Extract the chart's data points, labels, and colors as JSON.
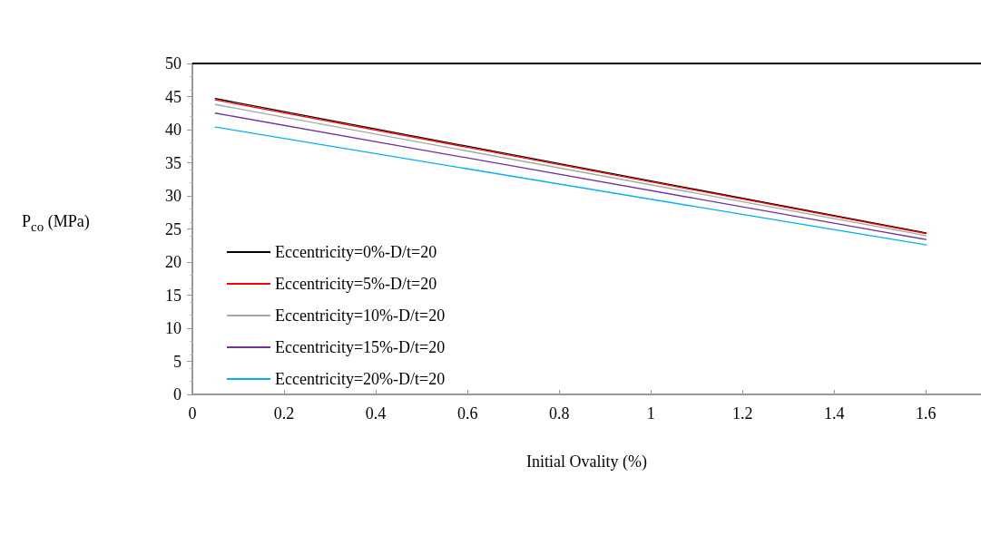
{
  "chart_data": {
    "type": "line",
    "xlabel": "Initial Ovality (%)",
    "ylabel": "P$_{co}$ (MPa)",
    "x": [
      0.05,
      1.6
    ],
    "series": [
      {
        "name": "Eccentricity=0%-D/t=20",
        "color": "#000000",
        "values": [
          44.7,
          24.4
        ]
      },
      {
        "name": "Eccentricity=5%-D/t=20",
        "color": "#ff0000",
        "values": [
          44.5,
          24.3
        ]
      },
      {
        "name": "Eccentricity=10%-D/t=20",
        "color": "#a6a6a6",
        "values": [
          43.8,
          24.0
        ]
      },
      {
        "name": "Eccentricity=15%-D/t=20",
        "color": "#7030a0",
        "values": [
          42.5,
          23.4
        ]
      },
      {
        "name": "Eccentricity=20%-D/t=20",
        "color": "#00b0f0",
        "values": [
          40.4,
          22.6
        ]
      }
    ],
    "xlim": [
      0,
      1.72
    ],
    "xticks": [
      0,
      0.2,
      0.4,
      0.6,
      0.8,
      1,
      1.2,
      1.4,
      1.6
    ],
    "ylim": [
      0,
      50
    ],
    "yticks": [
      0,
      5,
      10,
      15,
      20,
      25,
      30,
      35,
      40,
      45,
      50
    ],
    "grid": false,
    "legend": "bottom left",
    "marker": "none",
    "line_style": "solid"
  }
}
